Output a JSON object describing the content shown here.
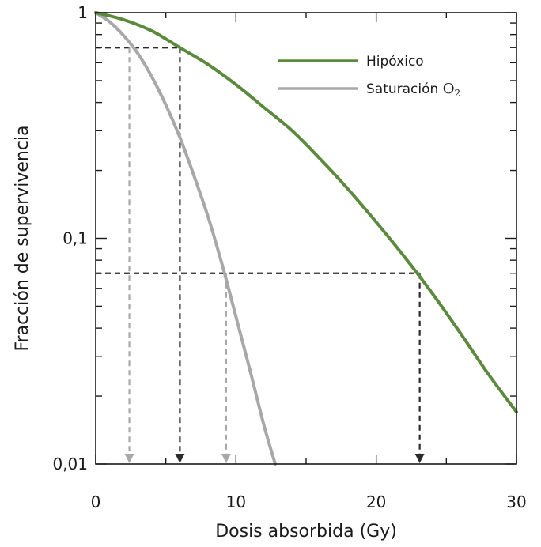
{
  "chart_data": {
    "type": "line",
    "xlabel": "Dosis absorbida (Gy)",
    "ylabel": "Fracción de supervivencia",
    "xlim": [
      0,
      30
    ],
    "ylim": [
      0.01,
      1
    ],
    "yscale": "log",
    "x_ticks": [
      "0",
      "10",
      "20",
      "30"
    ],
    "y_ticks": [
      "0,01",
      "0,1",
      "1"
    ],
    "grid": false,
    "legend_position": "top-right",
    "series": [
      {
        "name": "Hipóxico",
        "color": "#5b8a3c",
        "x": [
          0,
          2,
          4,
          6,
          8,
          10,
          12,
          14,
          16,
          18,
          20,
          22,
          24,
          26,
          28,
          30
        ],
        "y": [
          1,
          0.93,
          0.83,
          0.7,
          0.59,
          0.48,
          0.38,
          0.3,
          0.225,
          0.165,
          0.118,
          0.083,
          0.057,
          0.038,
          0.025,
          0.017
        ]
      },
      {
        "name_parts": [
          "Saturación ",
          "O",
          "2"
        ],
        "color": "#a8a8aa",
        "x": [
          0,
          1,
          2,
          3,
          4,
          5,
          6,
          7,
          8,
          9,
          10,
          11,
          12,
          12.8
        ],
        "y": [
          1,
          0.91,
          0.79,
          0.66,
          0.52,
          0.39,
          0.28,
          0.19,
          0.125,
          0.077,
          0.045,
          0.026,
          0.0148,
          0.01
        ]
      }
    ],
    "reference_lines": [
      {
        "y": 0.7,
        "x_gray": 2.4,
        "x_dark": 6.0
      },
      {
        "y": 0.07,
        "x_gray": 9.3,
        "x_dark": 23.1
      }
    ]
  }
}
